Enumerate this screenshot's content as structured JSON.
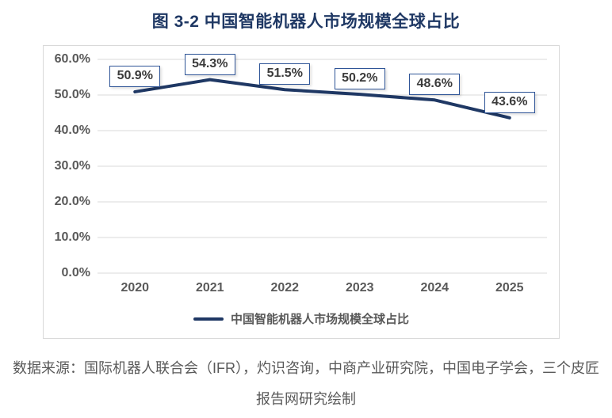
{
  "title": "图 3-2 中国智能机器人市场规模全球占比",
  "legend": {
    "label": "中国智能机器人市场规模全球占比"
  },
  "source_line1": "数据来源：国际机器人联合会（IFR），灼识咨询，中商产业研究院，中国电子学会，三个皮匠",
  "source_line2": "报告网研究绘制",
  "colors": {
    "line": "#1F3864",
    "title": "#1F3864",
    "label_box_border": "#2F5597",
    "axis_text": "#595959",
    "grid": "#D9D9D9"
  },
  "chart_data": {
    "type": "line",
    "title": "图 3-2 中国智能机器人市场规模全球占比",
    "series_name": "中国智能机器人市场规模全球占比",
    "categories": [
      "2020",
      "2021",
      "2022",
      "2023",
      "2024",
      "2025"
    ],
    "values": [
      50.9,
      54.3,
      51.5,
      50.2,
      48.6,
      43.6
    ],
    "point_labels": [
      "50.9%",
      "54.3%",
      "51.5%",
      "50.2%",
      "48.6%",
      "43.6%"
    ],
    "yticks": [
      "60.0%",
      "50.0%",
      "40.0%",
      "30.0%",
      "20.0%",
      "10.0%",
      "0.0%"
    ],
    "ylim": [
      0,
      60
    ],
    "xlabel": "",
    "ylabel": "",
    "grid": true,
    "legend_position": "bottom"
  }
}
